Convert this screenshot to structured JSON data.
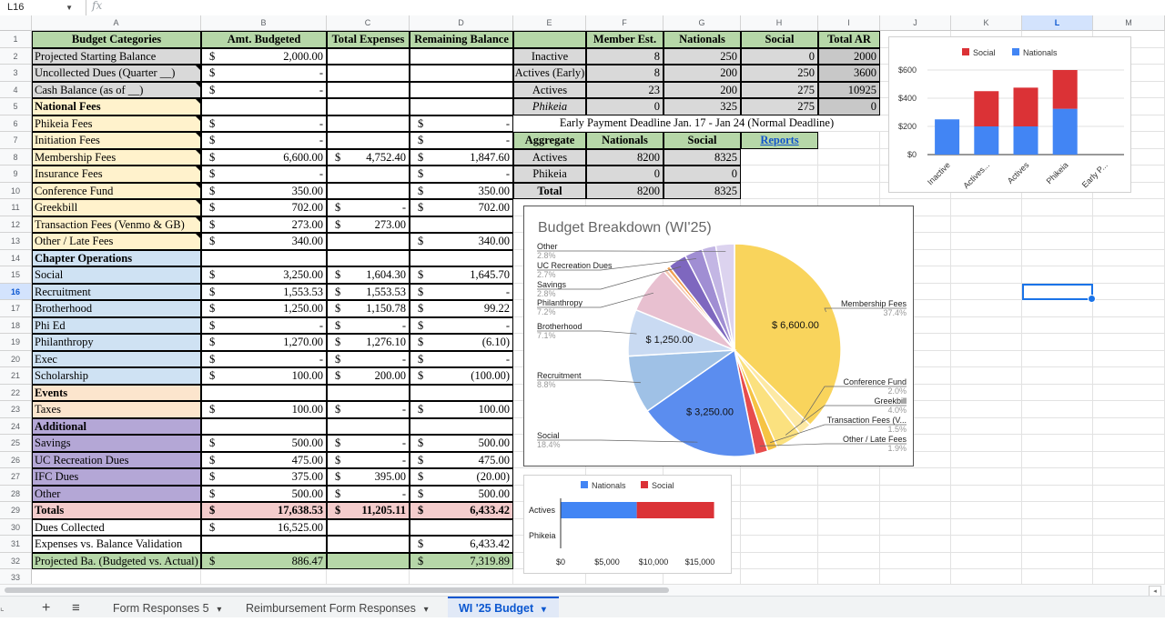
{
  "formula_bar": {
    "name_box": "L16",
    "fx": "fx"
  },
  "columns": [
    "A",
    "B",
    "C",
    "D",
    "E",
    "F",
    "G",
    "H",
    "I",
    "J",
    "K",
    "L",
    "M"
  ],
  "selected_column": "L",
  "selected_row": "16",
  "rows": [
    "1",
    "2",
    "3",
    "4",
    "5",
    "6",
    "7",
    "8",
    "9",
    "10",
    "11",
    "12",
    "13",
    "14",
    "15",
    "16",
    "17",
    "18",
    "19",
    "20",
    "21",
    "22",
    "23",
    "24",
    "25",
    "26",
    "27",
    "28",
    "29",
    "30",
    "31",
    "32",
    "33"
  ],
  "headers": {
    "budget_categories": "Budget Categories",
    "amt_budgeted": "Amt. Budgeted",
    "total_expenses": "Total Expenses",
    "remaining_balance": "Remaining Balance"
  },
  "colors": {
    "green": "#b6d7a8",
    "gray": "#d9d9d9",
    "yellow": "#fff2cc",
    "blue": "#cfe2f3",
    "orange": "#fce5cd",
    "purple": "#b4a7d6",
    "pink": "#f4cccc",
    "chart_blue": "#4285f4",
    "chart_red": "#db3236",
    "chart_yellow": "#f9d45c"
  },
  "budget_rows": [
    {
      "label": "Projected Starting Balance",
      "bg": "gray",
      "b_dol": "$",
      "b": "2,000.00",
      "c_dol": "",
      "c": "",
      "d_dol": "",
      "d": ""
    },
    {
      "label": "Uncollected Dues (Quarter __)",
      "bg": "gray",
      "b_dol": "$",
      "b": "-",
      "c_dol": "",
      "c": "",
      "d_dol": "",
      "d": ""
    },
    {
      "label": "Cash Balance (as of __)",
      "bg": "gray",
      "b_dol": "$",
      "b": "-",
      "c_dol": "",
      "c": "",
      "d_dol": "",
      "d": ""
    },
    {
      "label": "National Fees",
      "bg": "yellow",
      "bold": true,
      "b_dol": "",
      "b": "",
      "c_dol": "",
      "c": "",
      "d_dol": "",
      "d": ""
    },
    {
      "label": "Phikeia Fees",
      "bg": "yellow",
      "b_dol": "$",
      "b": "-",
      "c_dol": "",
      "c": "",
      "d_dol": "$",
      "d": "-"
    },
    {
      "label": "Initiation Fees",
      "bg": "yellow",
      "b_dol": "$",
      "b": "-",
      "c_dol": "",
      "c": "",
      "d_dol": "$",
      "d": "-"
    },
    {
      "label": "Membership Fees",
      "bg": "yellow",
      "b_dol": "$",
      "b": "6,600.00",
      "c_dol": "$",
      "c": "4,752.40",
      "d_dol": "$",
      "d": "1,847.60"
    },
    {
      "label": "Insurance Fees",
      "bg": "yellow",
      "b_dol": "$",
      "b": "-",
      "c_dol": "",
      "c": "",
      "d_dol": "$",
      "d": "-"
    },
    {
      "label": "Conference Fund",
      "bg": "yellow",
      "b_dol": "$",
      "b": "350.00",
      "c_dol": "",
      "c": "",
      "d_dol": "$",
      "d": "350.00"
    },
    {
      "label": "Greekbill",
      "bg": "yellow",
      "b_dol": "$",
      "b": "702.00",
      "c_dol": "$",
      "c": "-",
      "d_dol": "$",
      "d": "702.00"
    },
    {
      "label": "Transaction Fees (Venmo & GB)",
      "bg": "yellow",
      "b_dol": "$",
      "b": "273.00",
      "c_dol": "$",
      "c": "273.00",
      "d_dol": "",
      "d": ""
    },
    {
      "label": "Other / Late Fees",
      "bg": "yellow",
      "b_dol": "$",
      "b": "340.00",
      "c_dol": "",
      "c": "",
      "d_dol": "$",
      "d": "340.00"
    },
    {
      "label": "Chapter Operations",
      "bg": "blue",
      "bold": true,
      "b_dol": "",
      "b": "",
      "c_dol": "",
      "c": "",
      "d_dol": "",
      "d": ""
    },
    {
      "label": "Social",
      "bg": "blue",
      "b_dol": "$",
      "b": "3,250.00",
      "c_dol": "$",
      "c": "1,604.30",
      "d_dol": "$",
      "d": "1,645.70"
    },
    {
      "label": "Recruitment",
      "bg": "blue",
      "b_dol": "$",
      "b": "1,553.53",
      "c_dol": "$",
      "c": "1,553.53",
      "d_dol": "$",
      "d": "-"
    },
    {
      "label": "Brotherhood",
      "bg": "blue",
      "b_dol": "$",
      "b": "1,250.00",
      "c_dol": "$",
      "c": "1,150.78",
      "d_dol": "$",
      "d": "99.22"
    },
    {
      "label": "Phi Ed",
      "bg": "blue",
      "b_dol": "$",
      "b": "-",
      "c_dol": "$",
      "c": "-",
      "d_dol": "$",
      "d": "-"
    },
    {
      "label": "Philanthropy",
      "bg": "blue",
      "b_dol": "$",
      "b": "1,270.00",
      "c_dol": "$",
      "c": "1,276.10",
      "d_dol": "$",
      "d": "(6.10)"
    },
    {
      "label": "Exec",
      "bg": "blue",
      "b_dol": "$",
      "b": "-",
      "c_dol": "$",
      "c": "-",
      "d_dol": "$",
      "d": "-"
    },
    {
      "label": "Scholarship",
      "bg": "blue",
      "b_dol": "$",
      "b": "100.00",
      "c_dol": "$",
      "c": "200.00",
      "d_dol": "$",
      "d": "(100.00)"
    },
    {
      "label": "Events",
      "bg": "orange",
      "bold": true,
      "b_dol": "",
      "b": "",
      "c_dol": "",
      "c": "",
      "d_dol": "",
      "d": ""
    },
    {
      "label": "Taxes",
      "bg": "orange",
      "b_dol": "$",
      "b": "100.00",
      "c_dol": "$",
      "c": "-",
      "d_dol": "$",
      "d": "100.00"
    },
    {
      "label": "Additional",
      "bg": "purple",
      "bold": true,
      "b_dol": "",
      "b": "",
      "c_dol": "",
      "c": "",
      "d_dol": "",
      "d": ""
    },
    {
      "label": "Savings",
      "bg": "purple",
      "b_dol": "$",
      "b": "500.00",
      "c_dol": "$",
      "c": "-",
      "d_dol": "$",
      "d": "500.00"
    },
    {
      "label": "UC Recreation Dues",
      "bg": "purple",
      "b_dol": "$",
      "b": "475.00",
      "c_dol": "$",
      "c": "-",
      "d_dol": "$",
      "d": "475.00"
    },
    {
      "label": "IFC Dues",
      "bg": "purple",
      "b_dol": "$",
      "b": "375.00",
      "c_dol": "$",
      "c": "395.00",
      "d_dol": "$",
      "d": "(20.00)"
    },
    {
      "label": "Other",
      "bg": "purple",
      "b_dol": "$",
      "b": "500.00",
      "c_dol": "$",
      "c": "-",
      "d_dol": "$",
      "d": "500.00"
    },
    {
      "label": "Totals",
      "bg": "pink",
      "bold": true,
      "b_dol": "$",
      "b": "17,638.53",
      "c_dol": "$",
      "c": "11,205.11",
      "d_dol": "$",
      "d": "6,433.42"
    },
    {
      "label": "Dues Collected",
      "bg": "white",
      "b_dol": "$",
      "b": "16,525.00",
      "c_dol": "",
      "c": "",
      "d_dol": "",
      "d": ""
    },
    {
      "label": "Expenses vs. Balance Validation",
      "bg": "white",
      "b_dol": "",
      "b": "",
      "c_dol": "",
      "c": "",
      "d_dol": "$",
      "d": "6,433.42"
    },
    {
      "label": "Projected Ba. (Budgeted vs. Actual)",
      "bg": "green",
      "b_dol": "$",
      "b": "886.47",
      "c_dol": "",
      "c": "",
      "d_dol": "$",
      "d": "7,319.89"
    }
  ],
  "members_table": {
    "headers": [
      "Member Est.",
      "Nationals",
      "Social",
      "Total AR"
    ],
    "rows": [
      {
        "label": "Inactive",
        "italic": false,
        "vals": [
          "8",
          "250",
          "0",
          "2000"
        ]
      },
      {
        "label": "Actives (Early)",
        "italic": false,
        "vals": [
          "8",
          "200",
          "250",
          "3600"
        ]
      },
      {
        "label": "Actives",
        "italic": false,
        "vals": [
          "23",
          "200",
          "275",
          "10925"
        ]
      },
      {
        "label": "Phikeia",
        "italic": true,
        "vals": [
          "0",
          "325",
          "275",
          "0"
        ]
      }
    ]
  },
  "deadline_note": "Early Payment Deadline Jan. 17 - Jan 24 (Normal Deadline)",
  "aggregate_table": {
    "headers": [
      "Aggregate",
      "Nationals",
      "Social"
    ],
    "link": "Reports",
    "rows": [
      {
        "label": "Actives",
        "vals": [
          "8200",
          "8325"
        ]
      },
      {
        "label": "Phikeia",
        "vals": [
          "0",
          "0"
        ]
      },
      {
        "label": "Total",
        "vals": [
          "8200",
          "8325"
        ]
      }
    ]
  },
  "stacked_chart": {
    "chart_data": {
      "type": "bar",
      "categories": [
        "Inactive",
        "Actives...",
        "Actives",
        "Phikeia",
        "Early P..."
      ],
      "series": [
        {
          "name": "Nationals",
          "values": [
            250,
            200,
            200,
            325,
            0
          ]
        },
        {
          "name": "Social",
          "values": [
            0,
            250,
            275,
            275,
            0
          ]
        }
      ],
      "ylim": [
        0,
        600
      ],
      "yticks": [
        "$0",
        "$200",
        "$400",
        "$600"
      ],
      "legend": "top"
    }
  },
  "pie_chart": {
    "chart_data": {
      "type": "pie",
      "title": "Budget Breakdown (WI'25)",
      "slices": [
        {
          "name": "Membership Fees",
          "value": 6600,
          "pct": "37.4%",
          "color": "#f9d45c",
          "inlabel": "$ 6,600.00"
        },
        {
          "name": "Conference Fund",
          "value": 350,
          "pct": "2.0%",
          "color": "#fde9a4"
        },
        {
          "name": "Greekbill",
          "value": 702,
          "pct": "4.0%",
          "color": "#fbe17f"
        },
        {
          "name": "Transaction Fees (V...",
          "value": 273,
          "pct": "1.5%",
          "color": "#f6c343"
        },
        {
          "name": "Other / Late Fees",
          "value": 340,
          "pct": "1.9%",
          "color": "#e74c4c"
        },
        {
          "name": "Social",
          "value": 3250,
          "pct": "18.4%",
          "color": "#5b8def",
          "inlabel": "$ 3,250.00"
        },
        {
          "name": "Recruitment",
          "value": 1553.53,
          "pct": "8.8%",
          "color": "#9fc1e6"
        },
        {
          "name": "Brotherhood",
          "value": 1250,
          "pct": "7.1%",
          "color": "#c9daf2",
          "inlabel": "$ 1,250.00"
        },
        {
          "name": "Philanthropy",
          "value": 1270,
          "pct": "7.2%",
          "color": "#e8c0d0"
        },
        {
          "name": "Scholarship",
          "value": 100,
          "pct": "",
          "color": "#f5c6b0"
        },
        {
          "name": "Taxes",
          "value": 100,
          "pct": "",
          "color": "#f0a050"
        },
        {
          "name": "Savings",
          "value": 500,
          "pct": "2.8%",
          "color": "#7e67bf"
        },
        {
          "name": "UC Recreation Dues",
          "value": 475,
          "pct": "2.7%",
          "color": "#a08ed3"
        },
        {
          "name": "IFC Dues",
          "value": 375,
          "pct": "",
          "color": "#c3b6e4"
        },
        {
          "name": "Other",
          "value": 500,
          "pct": "2.8%",
          "color": "#dcd3ef"
        }
      ]
    }
  },
  "hbar_chart": {
    "chart_data": {
      "type": "bar",
      "orientation": "horizontal",
      "categories": [
        "Actives",
        "Phikeia"
      ],
      "series": [
        {
          "name": "Nationals",
          "values": [
            8200,
            0
          ]
        },
        {
          "name": "Social",
          "values": [
            8325,
            0
          ]
        }
      ],
      "xlim": [
        0,
        15000
      ],
      "xticks": [
        "$0",
        "$5,000",
        "$10,000",
        "$15,000"
      ],
      "legend": "top"
    }
  },
  "tabs": {
    "add": "+",
    "list": "≡",
    "items": [
      {
        "label": "Form Responses 5",
        "active": false
      },
      {
        "label": "Reimbursement Form Responses",
        "active": false
      },
      {
        "label": "WI '25 Budget",
        "active": true
      }
    ]
  }
}
